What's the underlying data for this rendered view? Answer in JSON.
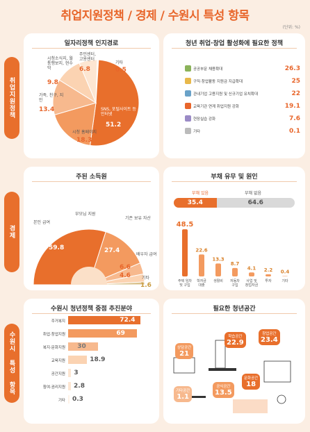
{
  "page": {
    "title": "취업지원정책 / 경제 / 수원시 특성 항목",
    "unit": "(단위: %)"
  },
  "sections": {
    "employment": "취업지원정책",
    "economy": "경제",
    "suwon": "수원시 특성 항목"
  },
  "colors": {
    "accent": "#e86f2c",
    "light": "#f7b98e",
    "pale": "#fbe0c8",
    "grey": "#d9d9d9",
    "brown": "#c99a3e"
  },
  "chart_data": [
    {
      "type": "pie",
      "title": "일자리정책 인지경로",
      "categories": [
        "SNS, 포털사이트 등 인터넷",
        "시청 홈페이지",
        "가족, 친구, 지인",
        "시청소식지, 월통행보지, 현수막",
        "주민센터, 고용센터",
        "기타"
      ],
      "values": [
        51.2,
        18.3,
        13.4,
        9.8,
        6.8,
        0.5
      ]
    },
    {
      "type": "bar",
      "title": "청년 취업·창업 활성화에 필요한 정책",
      "categories": [
        "공공부문 채용확대",
        "구직·창업활동 지원금 지급확대",
        "관내기업 고용지원 및 신규기업 유치확대",
        "교육기관 연계 취업지원 강화",
        "현장실습 강화",
        "기타"
      ],
      "values": [
        26.3,
        25.0,
        22.0,
        19.1,
        7.6,
        0.1
      ]
    },
    {
      "type": "pie",
      "title": "주된 소득원",
      "categories": [
        "본인 급여",
        "부모님 지원",
        "기존 보유 자산",
        "배우자 급여",
        "기타"
      ],
      "values": [
        59.8,
        27.4,
        6.6,
        4.6,
        1.6
      ]
    },
    {
      "type": "bar",
      "title": "부채 유무 및 원인",
      "debt": {
        "categories": [
          "부채 있음",
          "부채 없음"
        ],
        "values": [
          35.4,
          64.6
        ]
      },
      "categories": [
        "주택 임차 및 구입",
        "학자금 대출",
        "생활비",
        "자동차 구입",
        "사업 및 창업자금",
        "투자",
        "기타"
      ],
      "values": [
        48.5,
        22.6,
        13.3,
        8.7,
        4.1,
        2.2,
        0.4
      ]
    },
    {
      "type": "bar",
      "title": "수원시 청년정책 중점 추진분야",
      "categories": [
        "주거복지",
        "취업·창업지원",
        "복지·문화지원",
        "교육지원",
        "공간지원",
        "참여·권리지원",
        "기타"
      ],
      "values": [
        72.4,
        69.0,
        30.0,
        18.9,
        3.0,
        2.8,
        0.3
      ]
    },
    {
      "type": "table",
      "title": "필요한 청년공간",
      "categories": [
        "창업공간",
        "학습공간",
        "상담공간",
        "문화공간",
        "공식공간",
        "기타공간"
      ],
      "values": [
        23.4,
        22.9,
        21.0,
        18.0,
        13.5,
        1.1
      ]
    }
  ]
}
